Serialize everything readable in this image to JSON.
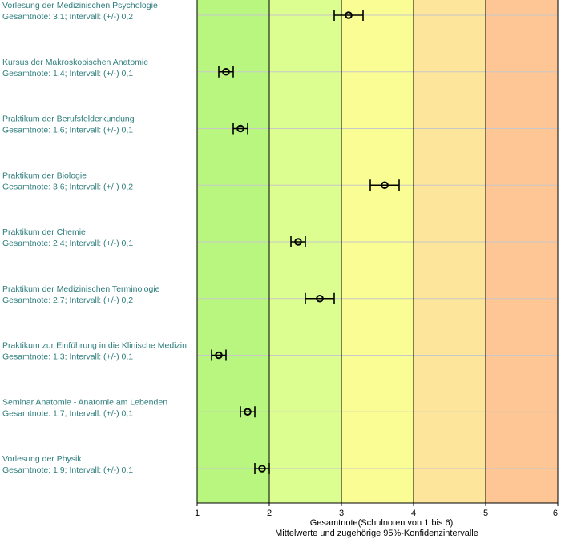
{
  "chart_data": {
    "type": "errorbar",
    "xlim": [
      1,
      6
    ],
    "xticks": [
      "1",
      "2",
      "3",
      "4",
      "5",
      "6"
    ],
    "xlabel": "Gesamtnote(Schulnoten von 1 bis 6)",
    "subtitle": "Mittelwerte und zugehörige 95%-Konfidenzintervalle",
    "bands": [
      {
        "from": 1,
        "to": 2,
        "color": "#b9f67f"
      },
      {
        "from": 2,
        "to": 3,
        "color": "#dcfd8f"
      },
      {
        "from": 3,
        "to": 4,
        "color": "#fafd93"
      },
      {
        "from": 4,
        "to": 5,
        "color": "#fde59b"
      },
      {
        "from": 5,
        "to": 6,
        "color": "#fec595"
      }
    ],
    "items": [
      {
        "name": "Vorlesung der Medizinischen Psychologie",
        "stat": "Gesamtnote: 3,1;  Intervall: (+/-) 0,2",
        "mean": 3.1,
        "ci": 0.2
      },
      {
        "name": "Kursus der Makroskopischen Anatomie",
        "stat": "Gesamtnote: 1,4;  Intervall: (+/-) 0,1",
        "mean": 1.4,
        "ci": 0.1
      },
      {
        "name": "Praktikum der Berufsfelderkundung",
        "stat": "Gesamtnote: 1,6;  Intervall: (+/-) 0,1",
        "mean": 1.6,
        "ci": 0.1
      },
      {
        "name": "Praktikum der Biologie",
        "stat": "Gesamtnote: 3,6;  Intervall: (+/-) 0,2",
        "mean": 3.6,
        "ci": 0.2
      },
      {
        "name": "Praktikum der Chemie",
        "stat": "Gesamtnote: 2,4;  Intervall: (+/-) 0,1",
        "mean": 2.4,
        "ci": 0.1
      },
      {
        "name": "Praktikum der Medizinischen Terminologie",
        "stat": "Gesamtnote: 2,7;  Intervall: (+/-) 0,2",
        "mean": 2.7,
        "ci": 0.2
      },
      {
        "name": "Praktikum zur Einführung in die Klinische Medizin",
        "stat": "Gesamtnote: 1,3;  Intervall: (+/-) 0,1",
        "mean": 1.3,
        "ci": 0.1
      },
      {
        "name": "Seminar Anatomie - Anatomie am Lebenden",
        "stat": "Gesamtnote: 1,7;  Intervall: (+/-) 0,1",
        "mean": 1.7,
        "ci": 0.1
      },
      {
        "name": "Vorlesung der Physik",
        "stat": "Gesamtnote: 1,9;  Intervall: (+/-) 0,1",
        "mean": 1.9,
        "ci": 0.1
      }
    ]
  }
}
